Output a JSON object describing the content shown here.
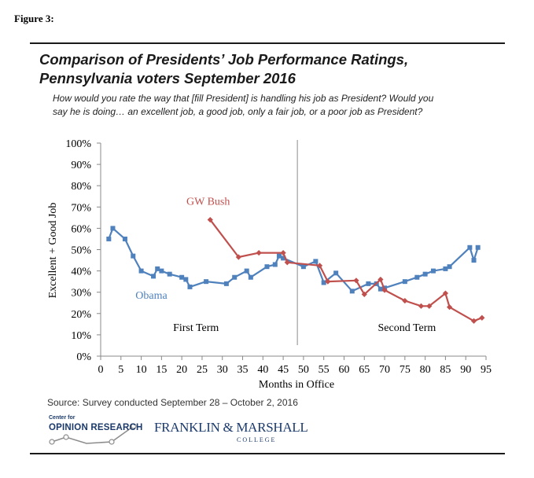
{
  "figure_label": "Figure 3:",
  "title_line1": "Comparison of Presidents’ Job Performance Ratings,",
  "title_line2": "Pennsylvania voters September 2016",
  "subtitle_line1": "How would you rate the way that [fill President] is handling his job as President? Would you",
  "subtitle_line2": "say he is doing… an excellent job, a good job, only a fair job, or a poor job as President?",
  "source": "Source: Survey conducted September 28 – October 2, 2016",
  "logos": {
    "cor_small": "Center for",
    "cor_big": "OPINION RESEARCH",
    "fm_name": "FRANKLIN & MARSHALL",
    "fm_college": "COLLEGE"
  },
  "colors": {
    "obama": "#4f81bd",
    "bush": "#c0504d",
    "divider": "#a6a6a6",
    "axis": "#888888"
  },
  "chart_data": {
    "type": "line",
    "xlabel": "Months in Office",
    "ylabel": "Excellent + Good Job",
    "xlim": [
      0,
      95
    ],
    "ylim": [
      0,
      100
    ],
    "x_ticks": [
      0,
      5,
      10,
      15,
      20,
      25,
      30,
      35,
      40,
      45,
      50,
      55,
      60,
      65,
      70,
      75,
      80,
      85,
      90,
      95
    ],
    "y_ticks": [
      0,
      10,
      20,
      30,
      40,
      50,
      60,
      70,
      80,
      90,
      100
    ],
    "y_tick_labels": [
      "0%",
      "10%",
      "20%",
      "30%",
      "40%",
      "50%",
      "60%",
      "70%",
      "80%",
      "90%",
      "100%"
    ],
    "divider_x": 48.5,
    "annotations": [
      {
        "text": "First Term",
        "x": 23.5,
        "y": 11
      },
      {
        "text": "Second Term",
        "x": 75.5,
        "y": 11
      }
    ],
    "series": [
      {
        "name": "Obama",
        "label_pos": {
          "x": 12.5,
          "y": 27
        },
        "marker": "square",
        "points": [
          [
            2,
            55
          ],
          [
            3,
            60
          ],
          [
            6,
            55
          ],
          [
            8,
            47
          ],
          [
            10,
            40
          ],
          [
            13,
            37.5
          ],
          [
            14,
            41
          ],
          [
            15,
            40
          ],
          [
            17,
            38.5
          ],
          [
            20,
            37
          ],
          [
            21,
            36
          ],
          [
            22,
            32.5
          ],
          [
            26,
            35
          ],
          [
            31,
            34
          ],
          [
            33,
            37
          ],
          [
            36,
            40
          ],
          [
            37,
            37
          ],
          [
            41,
            42
          ],
          [
            43,
            43
          ],
          [
            44,
            47
          ],
          [
            45,
            46
          ],
          [
            50,
            42
          ],
          [
            53,
            44.5
          ],
          [
            55,
            34.5
          ],
          [
            58,
            39
          ],
          [
            62,
            30.5
          ],
          [
            66,
            34
          ],
          [
            68,
            34
          ],
          [
            69,
            31.5
          ],
          [
            70,
            32
          ],
          [
            75,
            35
          ],
          [
            78,
            37
          ],
          [
            80,
            38.5
          ],
          [
            82,
            40
          ],
          [
            85,
            41
          ],
          [
            86,
            42
          ],
          [
            91,
            51
          ],
          [
            92,
            45
          ],
          [
            93,
            51
          ]
        ]
      },
      {
        "name": "GW Bush",
        "label_pos": {
          "x": 26.5,
          "y": 71
        },
        "marker": "diamond",
        "points": [
          [
            27,
            64
          ],
          [
            34,
            46.5
          ],
          [
            39,
            48.5
          ],
          [
            45,
            48.5
          ],
          [
            46,
            44
          ],
          [
            54,
            42.5
          ],
          [
            56,
            35
          ],
          [
            63,
            35.5
          ],
          [
            65,
            29
          ],
          [
            69,
            36
          ],
          [
            70,
            31
          ],
          [
            75,
            26
          ],
          [
            79,
            23.5
          ],
          [
            81,
            23.5
          ],
          [
            85,
            29.5
          ],
          [
            86,
            23
          ],
          [
            92,
            16.5
          ],
          [
            94,
            18
          ]
        ]
      }
    ]
  }
}
